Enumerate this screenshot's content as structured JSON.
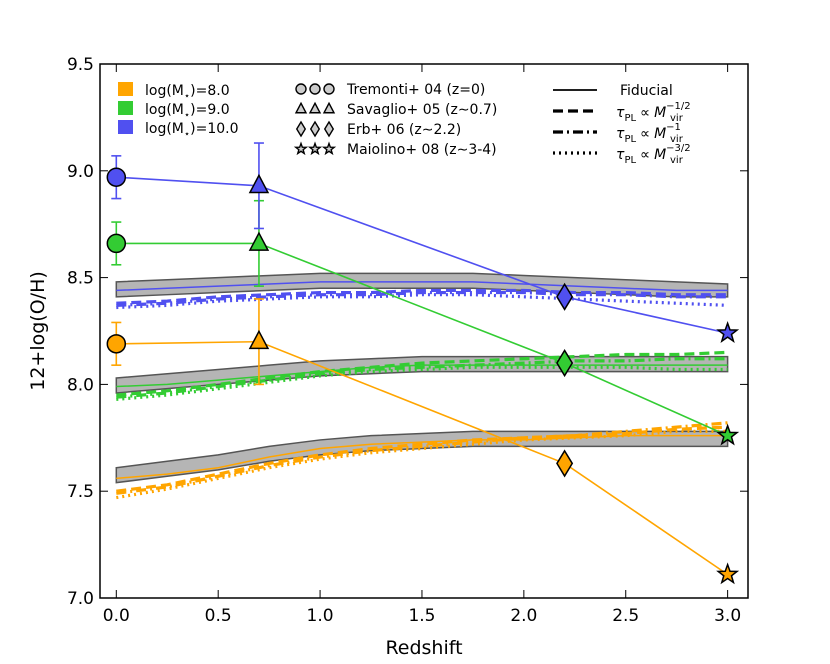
{
  "chart_data": {
    "type": "line",
    "xlabel": "Redshift",
    "ylabel": "12+log(O/H)",
    "xlim": [
      -0.08,
      3.1
    ],
    "ylim": [
      7.0,
      9.5
    ],
    "xticks": [
      0.0,
      0.5,
      1.0,
      1.5,
      2.0,
      2.5,
      3.0
    ],
    "xtick_labels": [
      "0.0",
      "0.5",
      "1.0",
      "1.5",
      "2.0",
      "2.5",
      "3.0"
    ],
    "yticks": [
      7.0,
      7.5,
      8.0,
      8.5,
      9.0,
      9.5
    ],
    "ytick_labels": [
      "7.0",
      "7.5",
      "8.0",
      "8.5",
      "9.0",
      "9.5"
    ],
    "legend_masses": [
      {
        "label": "log(M",
        "sub": "⋆",
        "suffix": ")=8.0",
        "color": "#FFA500"
      },
      {
        "label": "log(M",
        "sub": "⋆",
        "suffix": ")=9.0",
        "color": "#33CC33"
      },
      {
        "label": "log(M",
        "sub": "⋆",
        "suffix": ")=10.0",
        "color": "#5050F0"
      }
    ],
    "legend_surveys": [
      {
        "marker": "circle",
        "label": "Tremonti+ 04 (z=0)"
      },
      {
        "marker": "triangle",
        "label": "Savaglio+ 05 (z∼0.7)"
      },
      {
        "marker": "diamond",
        "label": "Erb+ 06 (z∼2.2)"
      },
      {
        "marker": "star",
        "label": "Maiolino+ 08 (z∼3-4)"
      }
    ],
    "legend_models": [
      {
        "style": "solid",
        "label": "Fiducial",
        "math": false
      },
      {
        "style": "dashed",
        "label": "",
        "math": true,
        "exp": "−1/2"
      },
      {
        "style": "dashdot",
        "label": "",
        "math": true,
        "exp": "−1"
      },
      {
        "style": "dotted",
        "label": "",
        "math": true,
        "exp": "−3/2"
      }
    ],
    "math_labels": {
      "tau": "τ",
      "pl": "PL",
      "prop": "∝",
      "M": "M",
      "vir": "vir"
    },
    "observations": [
      {
        "name": "log(M*)=8.0",
        "color": "#FFA500",
        "x": [
          0.0,
          0.7,
          2.2,
          3.0
        ],
        "y": [
          8.19,
          8.2,
          7.63,
          7.11
        ],
        "markers": [
          "circle",
          "triangle",
          "diamond",
          "star"
        ],
        "yerr": [
          0.1,
          0.2,
          0,
          0
        ]
      },
      {
        "name": "log(M*)=9.0",
        "color": "#33CC33",
        "x": [
          0.0,
          0.7,
          2.2,
          3.0
        ],
        "y": [
          8.66,
          8.66,
          8.1,
          7.76
        ],
        "markers": [
          "circle",
          "triangle",
          "diamond",
          "star"
        ],
        "yerr": [
          0.1,
          0.2,
          0,
          0
        ]
      },
      {
        "name": "log(M*)=10.0",
        "color": "#5050F0",
        "x": [
          0.0,
          0.7,
          2.2,
          3.0
        ],
        "y": [
          8.97,
          8.93,
          8.41,
          8.24
        ],
        "markers": [
          "circle",
          "triangle",
          "diamond",
          "star"
        ],
        "yerr": [
          0.1,
          0.2,
          0,
          0
        ]
      }
    ],
    "model_x": [
      0.0,
      0.25,
      0.5,
      0.75,
      1.0,
      1.25,
      1.5,
      1.75,
      2.0,
      2.25,
      2.5,
      2.75,
      3.0
    ],
    "models": [
      {
        "name": "log(M*)=8.0",
        "color": "#FFA500",
        "band_low": [
          7.54,
          7.57,
          7.6,
          7.64,
          7.67,
          7.69,
          7.7,
          7.71,
          7.71,
          7.71,
          7.71,
          7.71,
          7.71
        ],
        "band_high": [
          7.61,
          7.64,
          7.67,
          7.71,
          7.74,
          7.76,
          7.77,
          7.78,
          7.78,
          7.78,
          7.78,
          7.78,
          7.78
        ],
        "fiducial": [
          7.56,
          7.58,
          7.61,
          7.66,
          7.7,
          7.72,
          7.73,
          7.74,
          7.74,
          7.75,
          7.76,
          7.76,
          7.76
        ],
        "dashed": [
          7.5,
          7.53,
          7.58,
          7.63,
          7.67,
          7.7,
          7.72,
          7.74,
          7.75,
          7.76,
          7.77,
          7.79,
          7.8
        ],
        "dashdot": [
          7.49,
          7.52,
          7.57,
          7.62,
          7.66,
          7.69,
          7.71,
          7.73,
          7.75,
          7.76,
          7.78,
          7.8,
          7.82
        ],
        "dotted": [
          7.47,
          7.51,
          7.56,
          7.61,
          7.65,
          7.68,
          7.7,
          7.72,
          7.74,
          7.75,
          7.76,
          7.78,
          7.78
        ]
      },
      {
        "name": "log(M*)=9.0",
        "color": "#33CC33",
        "band_low": [
          7.96,
          7.98,
          8.0,
          8.02,
          8.04,
          8.05,
          8.06,
          8.06,
          8.06,
          8.06,
          8.06,
          8.06,
          8.06
        ],
        "band_high": [
          8.03,
          8.05,
          8.07,
          8.09,
          8.11,
          8.12,
          8.13,
          8.13,
          8.13,
          8.13,
          8.13,
          8.13,
          8.13
        ],
        "fiducial": [
          7.99,
          8.0,
          8.02,
          8.04,
          8.06,
          8.08,
          8.09,
          8.09,
          8.09,
          8.09,
          8.09,
          8.09,
          8.09
        ],
        "dashed": [
          7.95,
          7.97,
          8.0,
          8.03,
          8.06,
          8.08,
          8.1,
          8.11,
          8.12,
          8.13,
          8.14,
          8.14,
          8.15
        ],
        "dashdot": [
          7.94,
          7.96,
          7.99,
          8.02,
          8.05,
          8.07,
          8.08,
          8.09,
          8.1,
          8.11,
          8.11,
          8.12,
          8.12
        ],
        "dotted": [
          7.93,
          7.95,
          7.98,
          8.01,
          8.04,
          8.06,
          8.07,
          8.08,
          8.08,
          8.08,
          8.08,
          8.07,
          8.07
        ]
      },
      {
        "name": "log(M*)=10.0",
        "color": "#5050F0",
        "band_low": [
          8.41,
          8.42,
          8.43,
          8.44,
          8.45,
          8.45,
          8.45,
          8.45,
          8.44,
          8.43,
          8.42,
          8.41,
          8.41
        ],
        "band_high": [
          8.48,
          8.49,
          8.5,
          8.51,
          8.52,
          8.52,
          8.52,
          8.52,
          8.51,
          8.5,
          8.49,
          8.48,
          8.47
        ],
        "fiducial": [
          8.44,
          8.45,
          8.46,
          8.47,
          8.48,
          8.48,
          8.48,
          8.48,
          8.47,
          8.46,
          8.45,
          8.44,
          8.44
        ],
        "dashed": [
          8.38,
          8.39,
          8.41,
          8.42,
          8.43,
          8.43,
          8.44,
          8.44,
          8.44,
          8.43,
          8.43,
          8.42,
          8.42
        ],
        "dashdot": [
          8.37,
          8.38,
          8.4,
          8.41,
          8.42,
          8.42,
          8.43,
          8.43,
          8.43,
          8.42,
          8.42,
          8.41,
          8.41
        ],
        "dotted": [
          8.36,
          8.37,
          8.39,
          8.4,
          8.41,
          8.41,
          8.42,
          8.42,
          8.41,
          8.4,
          8.39,
          8.38,
          8.37
        ]
      }
    ]
  }
}
